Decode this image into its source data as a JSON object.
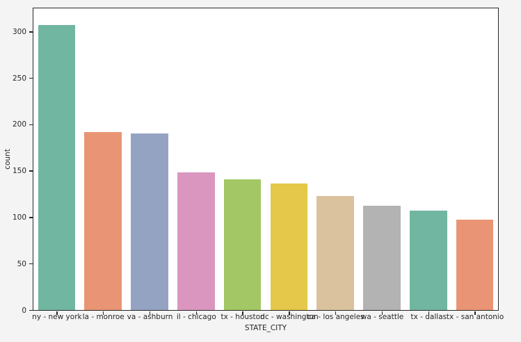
{
  "figure": {
    "background_color": "#f4f4f4",
    "plot_background_color": "#ffffff",
    "spine_color": "#262626",
    "text_color": "#262626"
  },
  "chart_data": {
    "type": "bar",
    "categories": [
      "ny - new york",
      "la - monroe",
      "va - ashburn",
      "il - chicago",
      "tx - houston",
      "dc - washington",
      "ca - los angeles",
      "wa - seattle",
      "tx - dallas",
      "tx - san antonio"
    ],
    "values": [
      307,
      192,
      190,
      148,
      141,
      136,
      123,
      112,
      107,
      97
    ],
    "bar_colors": [
      "#71b6a1",
      "#e99575",
      "#95a3c3",
      "#db96c0",
      "#a2c764",
      "#e5c849",
      "#dbc29e",
      "#b3b3b3",
      "#71b6a1",
      "#e99575"
    ],
    "xlabel": "STATE_CITY",
    "ylabel": "count",
    "ylim": [
      0,
      325
    ],
    "yticks": [
      0,
      50,
      100,
      150,
      200,
      250,
      300
    ],
    "bar_width_fraction": 0.8,
    "grid": false,
    "legend": "none"
  }
}
